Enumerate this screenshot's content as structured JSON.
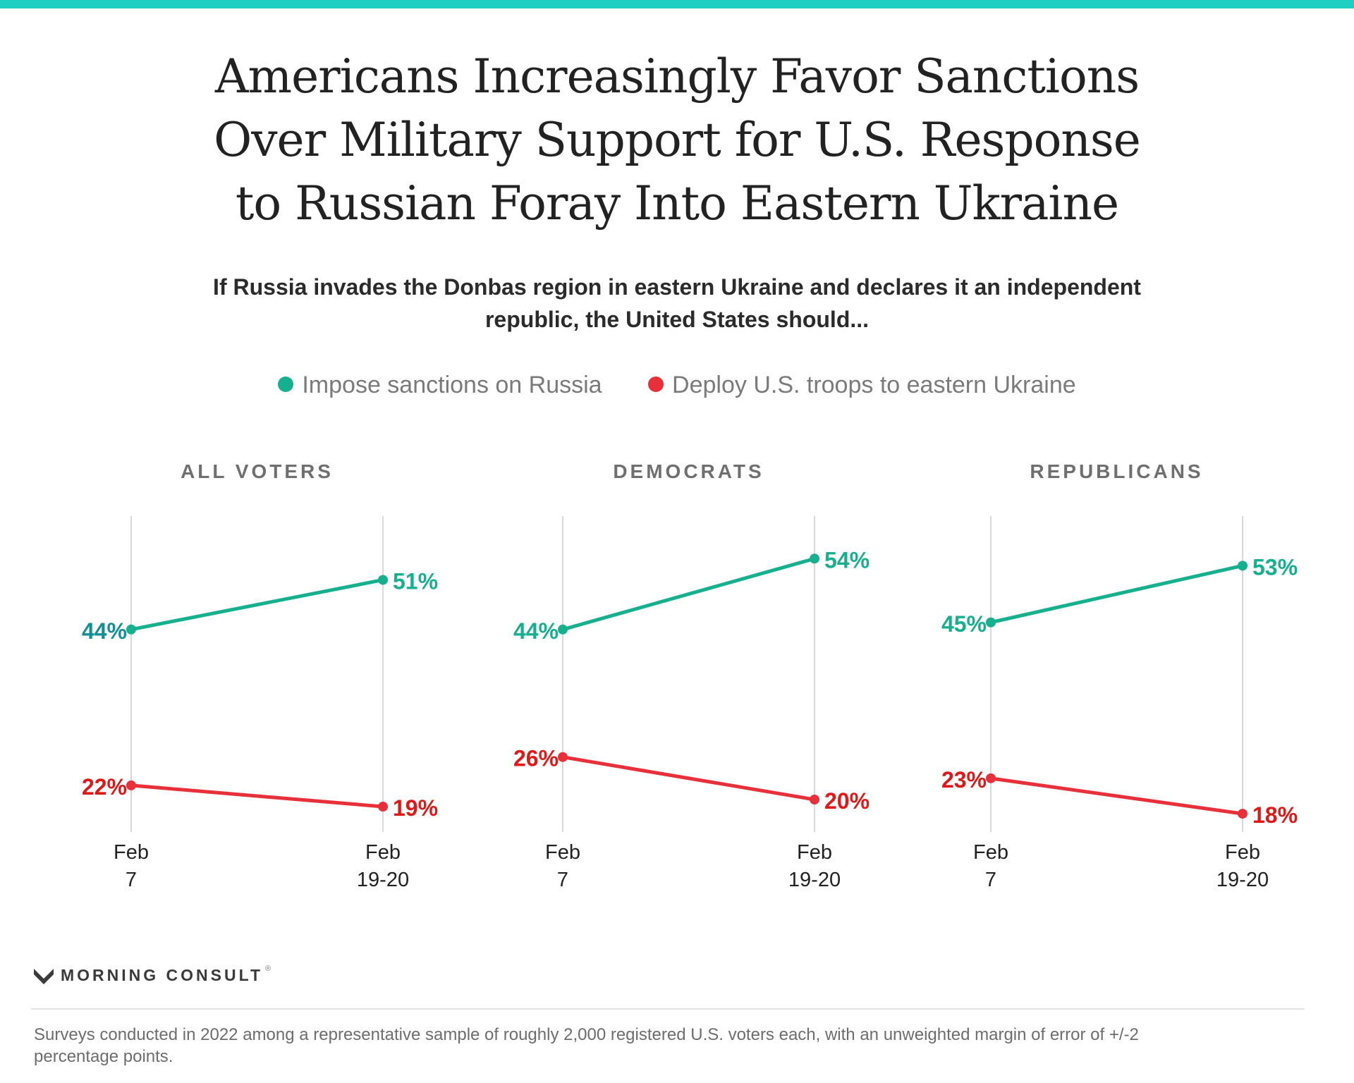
{
  "header": {
    "title_lines": [
      "Americans Increasingly Favor Sanctions",
      "Over Military Support for U.S. Response",
      "to Russian Foray Into Eastern Ukraine"
    ],
    "subtitle_lines": [
      "If Russia invades the Donbas region in eastern Ukraine and declares it an independent",
      "republic, the United States should..."
    ]
  },
  "legend": {
    "placement": "top-center",
    "items": [
      {
        "label": "Impose sanctions on Russia",
        "color": "#17b08f"
      },
      {
        "label": "Deploy U.S. troops to eastern Ukraine",
        "color": "#e8303b"
      }
    ]
  },
  "colors": {
    "sanctions": "#17b08f",
    "sanctions_label_all_voters": "#138f95",
    "troops": "#e8303b",
    "troops_label": "#e01818",
    "gridline": "#d9d9d9",
    "panel_title": "#6f6f6f",
    "tick_label": "#222222"
  },
  "chart_data": [
    {
      "type": "line",
      "title": "ALL VOTERS",
      "x": [
        "Feb 7",
        "Feb 19-20"
      ],
      "x_tick_lines": [
        [
          "Feb",
          "7"
        ],
        [
          "Feb",
          "19-20"
        ]
      ],
      "ylim": [
        0,
        60
      ],
      "grid": "vertical-only",
      "series": [
        {
          "name": "Impose sanctions on Russia",
          "values": [
            44,
            51
          ],
          "labels": [
            "44%",
            "51%"
          ]
        },
        {
          "name": "Deploy U.S. troops to eastern Ukraine",
          "values": [
            22,
            19
          ],
          "labels": [
            "22%",
            "19%"
          ]
        }
      ]
    },
    {
      "type": "line",
      "title": "DEMOCRATS",
      "x": [
        "Feb 7",
        "Feb 19-20"
      ],
      "x_tick_lines": [
        [
          "Feb",
          "7"
        ],
        [
          "Feb",
          "19-20"
        ]
      ],
      "ylim": [
        0,
        60
      ],
      "grid": "vertical-only",
      "series": [
        {
          "name": "Impose sanctions on Russia",
          "values": [
            44,
            54
          ],
          "labels": [
            "44%",
            "54%"
          ]
        },
        {
          "name": "Deploy U.S. troops to eastern Ukraine",
          "values": [
            26,
            20
          ],
          "labels": [
            "26%",
            "20%"
          ]
        }
      ]
    },
    {
      "type": "line",
      "title": "REPUBLICANS",
      "x": [
        "Feb 7",
        "Feb 19-20"
      ],
      "x_tick_lines": [
        [
          "Feb",
          "7"
        ],
        [
          "Feb",
          "19-20"
        ]
      ],
      "ylim": [
        0,
        60
      ],
      "grid": "vertical-only",
      "series": [
        {
          "name": "Impose sanctions on Russia",
          "values": [
            45,
            53
          ],
          "labels": [
            "45%",
            "53%"
          ]
        },
        {
          "name": "Deploy U.S. troops to eastern Ukraine",
          "values": [
            23,
            18
          ],
          "labels": [
            "23%",
            "18%"
          ]
        }
      ]
    }
  ],
  "footer": {
    "brand": "MORNING CONSULT",
    "brand_mark": "®",
    "note_lines": [
      "Surveys conducted in 2022 among a representative sample of roughly 2,000 registered U.S. voters each, with an unweighted margin of error of +/-2",
      "percentage points."
    ]
  }
}
